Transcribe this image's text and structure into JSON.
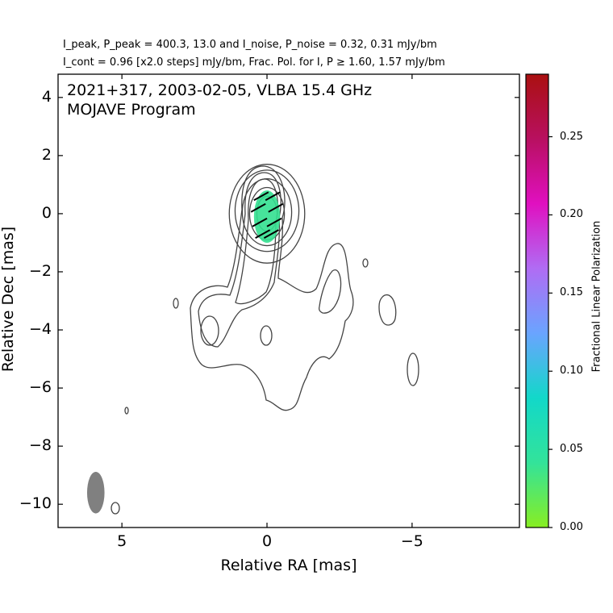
{
  "header": {
    "line1": "I_peak, P_peak = 400.3, 13.0 and I_noise, P_noise = 0.32, 0.31 mJy/bm",
    "line2": "I_cont = 0.96 [x2.0 steps] mJy/bm, Frac. Pol. for I, P ≥ 1.60, 1.57 mJy/bm"
  },
  "chart_data": {
    "type": "contour",
    "title": "2021+317, 2003-02-05, VLBA 15.4 GHz",
    "subtitle": "MOJAVE Program",
    "xlabel": "Relative RA [mas]",
    "ylabel": "Relative Dec [mas]",
    "xlim": [
      7.2,
      -8.7
    ],
    "ylim": [
      -10.8,
      4.8
    ],
    "x_ticks": [
      5,
      0,
      -5
    ],
    "x_tick_labels": [
      "5",
      "0",
      "−5"
    ],
    "y_ticks": [
      4,
      2,
      0,
      -2,
      -4,
      -6,
      -8,
      -10
    ],
    "y_tick_labels": [
      "4",
      "2",
      "0",
      "−2",
      "−4",
      "−6",
      "−8",
      "−10"
    ],
    "source": "2021+317",
    "observation_date": "2003-02-05",
    "instrument": "VLBA 15.4 GHz",
    "peak_intensity_mJy_per_beam": 400.3,
    "peak_polarized_mJy_per_beam": 13.0,
    "noise_I_mJy_per_beam": 0.32,
    "noise_P_mJy_per_beam": 0.31,
    "lowest_contour_mJy_per_beam": 0.96,
    "contour_step_factor": 2.0,
    "frac_pol_cut_I_mJy_per_beam": 1.6,
    "frac_pol_cut_P_mJy_per_beam": 1.57,
    "core_contours_mas": [
      {
        "x": 0.0,
        "y": 0.0,
        "rx": 1.3,
        "ry": 1.7
      },
      {
        "x": 0.0,
        "y": 0.1,
        "rx": 1.1,
        "ry": 1.4
      },
      {
        "x": 0.0,
        "y": 0.05,
        "rx": 0.85,
        "ry": 1.15
      },
      {
        "x": 0.0,
        "y": 0.0,
        "rx": 0.6,
        "ry": 0.9
      },
      {
        "x": 0.0,
        "y": 0.0,
        "rx": 0.35,
        "ry": 0.6
      }
    ],
    "polarization_region": {
      "x": 0.0,
      "y": -0.1,
      "rx": 0.45,
      "ry": 0.9
    },
    "evpa_ticks_mas": [
      {
        "x": 0.2,
        "y": 0.6
      },
      {
        "x": -0.2,
        "y": 0.6
      },
      {
        "x": 0.3,
        "y": 0.2
      },
      {
        "x": -0.3,
        "y": 0.2
      },
      {
        "x": 0.25,
        "y": -0.3
      },
      {
        "x": -0.25,
        "y": -0.3
      },
      {
        "x": 0.15,
        "y": -0.7
      },
      {
        "x": -0.15,
        "y": -0.7
      }
    ],
    "beam": {
      "x": 5.9,
      "y": -9.6,
      "bmaj_mas": 1.1,
      "bmin_mas": 0.6
    },
    "colorbar": {
      "label": "Fractional Linear Polarization",
      "range": [
        0.0,
        0.29
      ],
      "ticks": [
        0.0,
        0.05,
        0.1,
        0.15,
        0.2,
        0.25
      ],
      "tick_labels": [
        "0.00",
        "0.05",
        "0.10",
        "0.15",
        "0.20",
        "0.25"
      ],
      "colors": [
        "#88ee22",
        "#33e39a",
        "#12d8c9",
        "#6aa4ff",
        "#b06cf4",
        "#e010c0",
        "#b81060",
        "#aa1010"
      ]
    },
    "colors": {
      "contour": "#444444",
      "polarization": "#33e090",
      "beam": "#808080"
    }
  }
}
